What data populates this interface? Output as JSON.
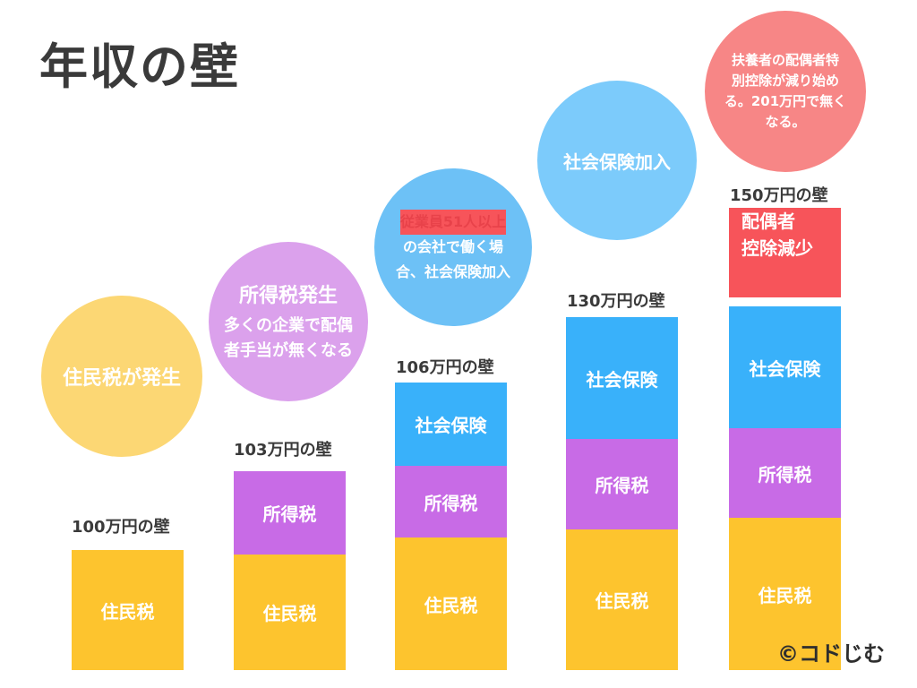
{
  "title": "年収の壁",
  "circles": {
    "c1": {
      "text": "住民税が発生"
    },
    "c2": {
      "heading": "所得税発生",
      "body_line1": "多くの企業で配偶",
      "body_line2": "者手当が無くなる"
    },
    "c3": {
      "line1_red": "従業員51人以上",
      "line2": "の会社で働く場",
      "line3": "合、社会保険加入"
    },
    "c4": {
      "text": "社会保険加入"
    },
    "c5": {
      "line1": "扶養者の配偶者特",
      "line2": "別控除が減り始め",
      "line3": "る。201万円で無く",
      "line4": "なる。"
    }
  },
  "bars": [
    {
      "wall_label": "100万円の壁",
      "segments": {
        "juminzei": "住民税"
      }
    },
    {
      "wall_label": "103万円の壁",
      "segments": {
        "juminzei": "住民税",
        "shotokuzei": "所得税"
      }
    },
    {
      "wall_label": "106万円の壁",
      "segments": {
        "juminzei": "住民税",
        "shotokuzei": "所得税",
        "shakaihoken": "社会保険"
      }
    },
    {
      "wall_label": "130万円の壁",
      "segments": {
        "juminzei": "住民税",
        "shotokuzei": "所得税",
        "shakaihoken": "社会保険"
      }
    },
    {
      "wall_label": "150万円の壁",
      "segments": {
        "juminzei": "住民税",
        "shotokuzei": "所得税",
        "shakaihoken": "社会保険",
        "haigusha_line1": "配偶者",
        "haigusha_line2": "控除減少"
      }
    }
  ],
  "credit": "©コドじむ",
  "colors": {
    "yellow": "#fdc42e",
    "purple": "#c86be6",
    "blue": "#39b1fa",
    "red": "#f7545a"
  }
}
